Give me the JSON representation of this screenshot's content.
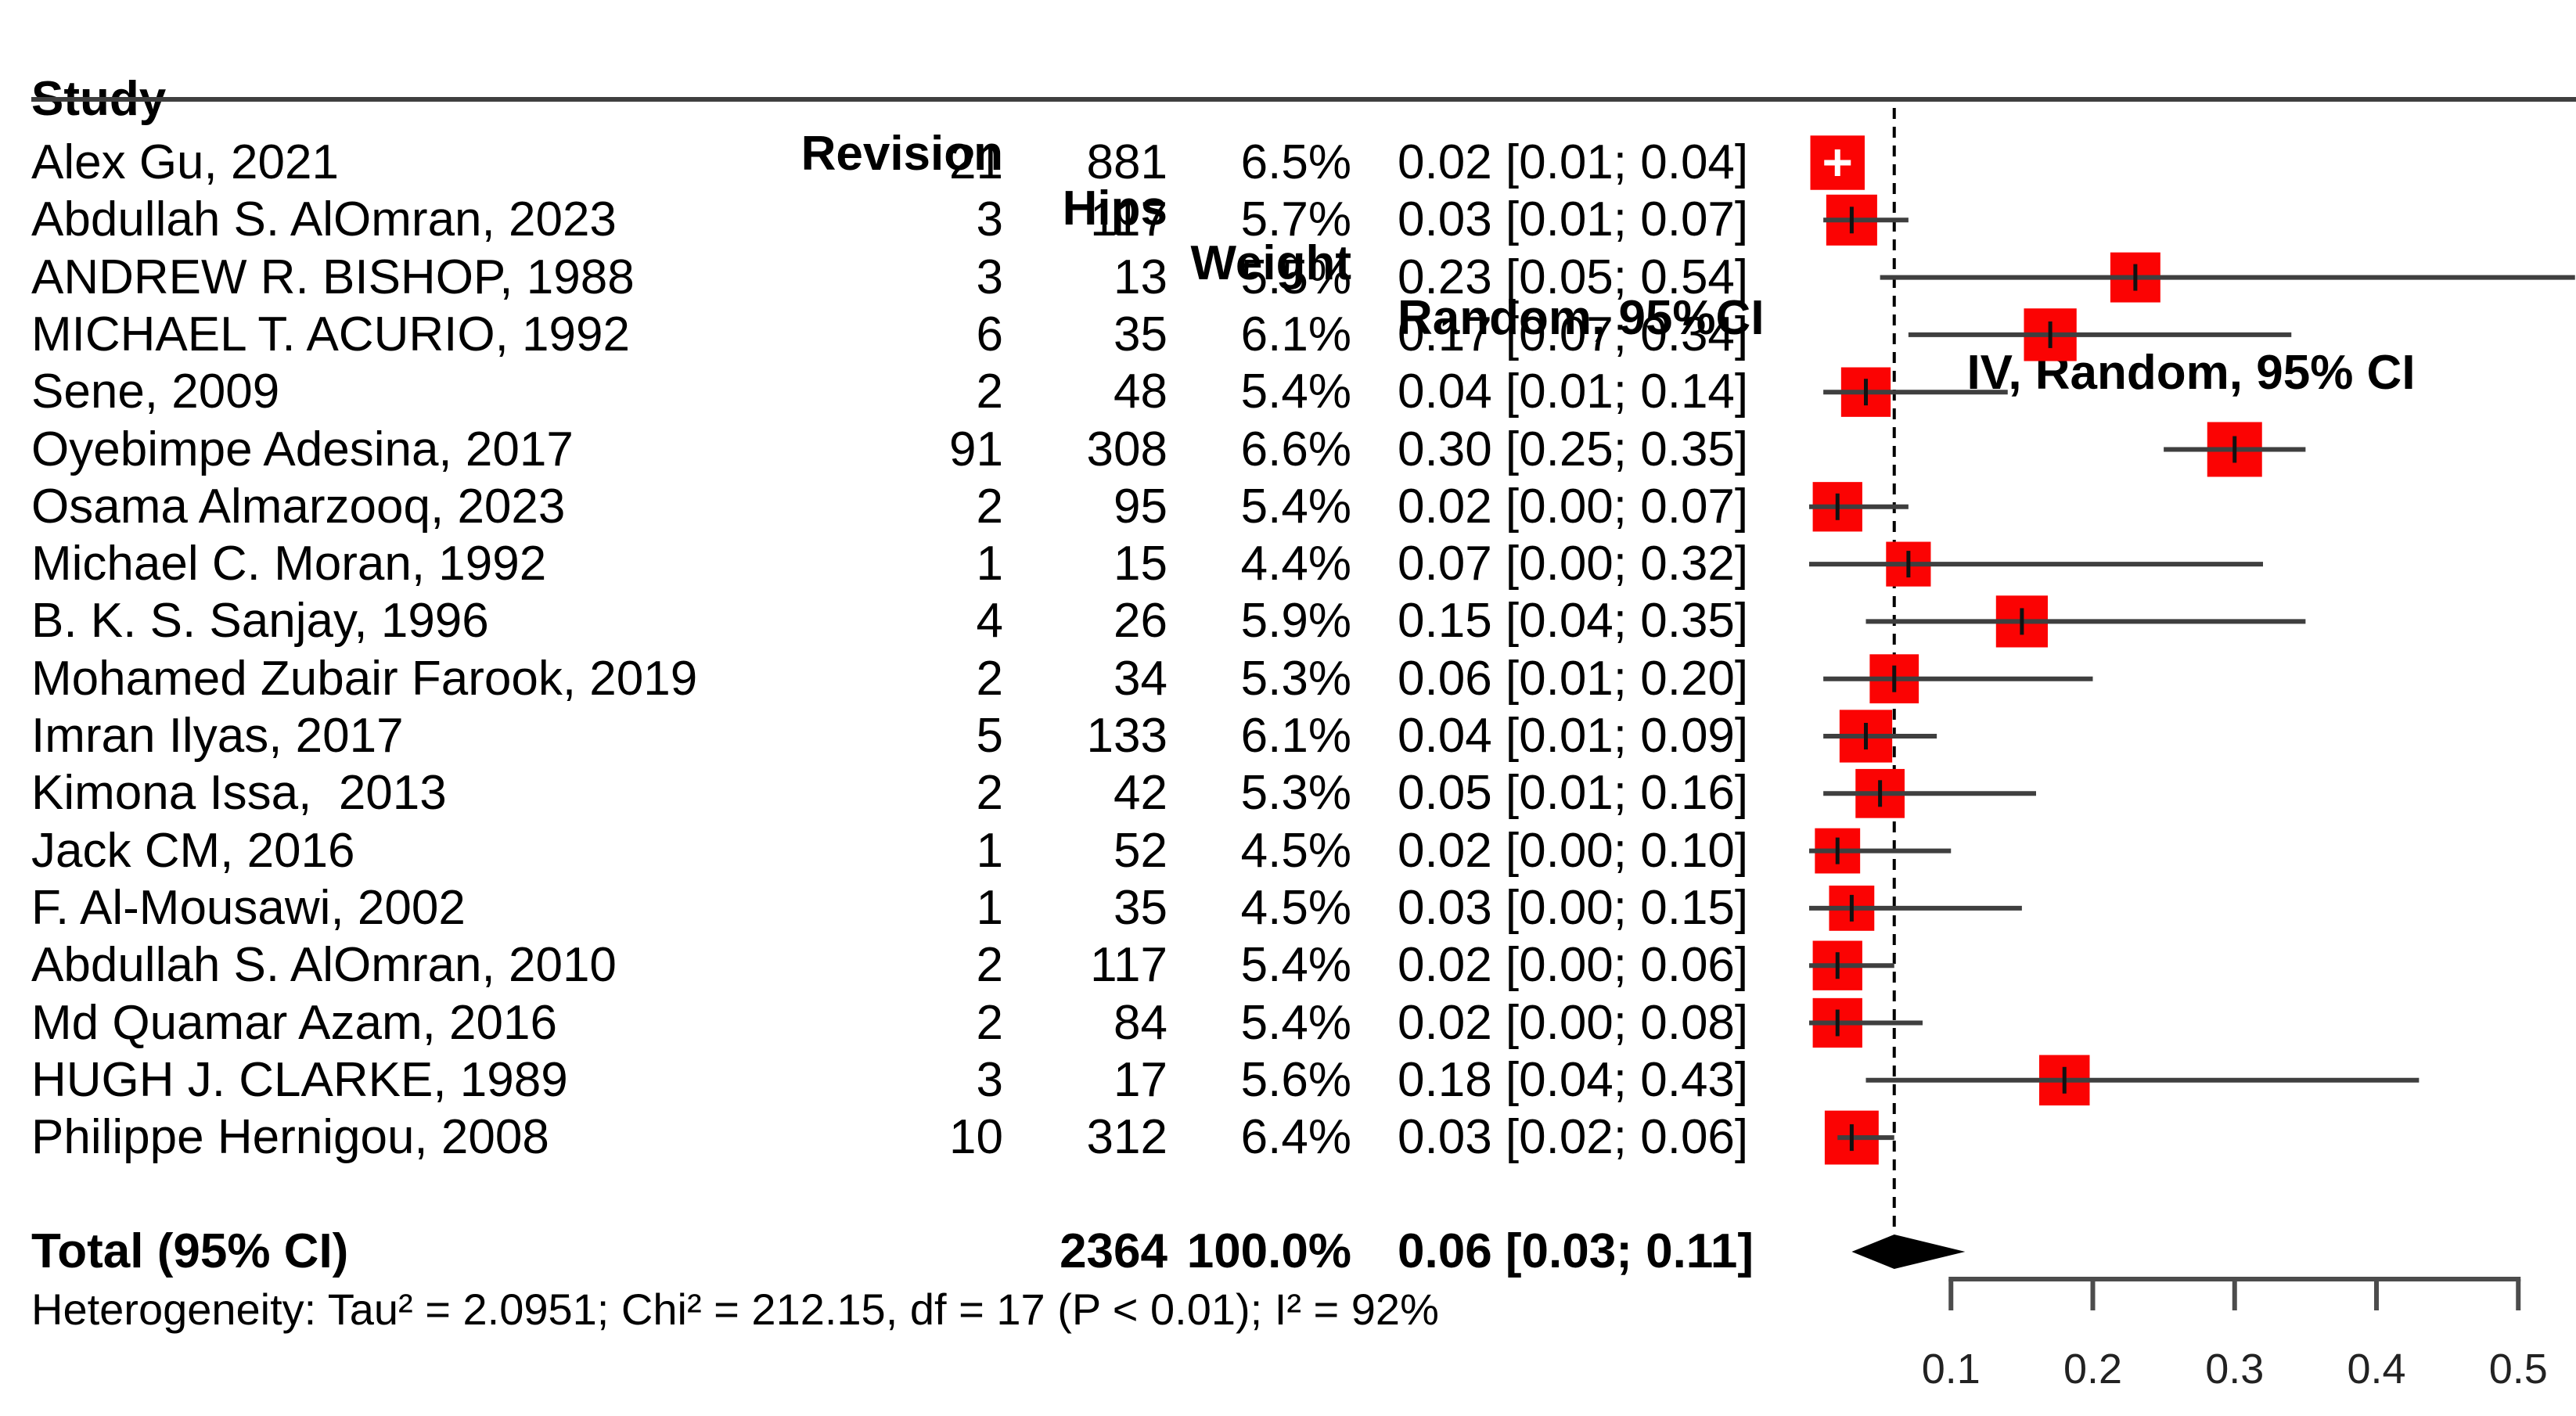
{
  "header": {
    "study": "Study",
    "revision": "Revision",
    "hips": "Hips",
    "weight": "Weight",
    "random_ci": "Random, 95%CI",
    "iv_random_ci": "IV, Random, 95% CI"
  },
  "colors": {
    "marker_red": "#fb0303",
    "ci_line_dark": "#3f3f3f",
    "diamond_black": "#000000",
    "axis_line": "#4c4c4c",
    "axis_label": "#222222",
    "header_rule": "#3f3f3f",
    "reference_line": "#000000",
    "white_plus": "#ffffff"
  },
  "chart_data": {
    "type": "forest",
    "effect_measure": "IV, Random, 95% CI",
    "x_axis": {
      "min": 0,
      "max": 0.545,
      "ticks": [
        0.1,
        0.2,
        0.3,
        0.4,
        0.5
      ],
      "tick_labels": [
        "0.1",
        "0.2",
        "0.3",
        "0.4",
        "0.5"
      ]
    },
    "reference_line": 0.06,
    "legend_position": "none",
    "grid": false,
    "studies": [
      {
        "name": "Alex Gu, 2021",
        "revision": 21,
        "hips": 881,
        "weight_pct": 6.5,
        "weight_text": "6.5%",
        "estimate": 0.02,
        "ci_lower": 0.01,
        "ci_upper": 0.04,
        "ci_text": "0.02 [0.01; 0.04]"
      },
      {
        "name": "Abdullah S. AlOmran, 2023",
        "revision": 3,
        "hips": 117,
        "weight_pct": 5.7,
        "weight_text": "5.7%",
        "estimate": 0.03,
        "ci_lower": 0.01,
        "ci_upper": 0.07,
        "ci_text": "0.03 [0.01; 0.07]"
      },
      {
        "name": "ANDREW R. BISHOP, 1988",
        "revision": 3,
        "hips": 13,
        "weight_pct": 5.5,
        "weight_text": "5.5%",
        "estimate": 0.23,
        "ci_lower": 0.05,
        "ci_upper": 0.54,
        "ci_text": "0.23 [0.05; 0.54]"
      },
      {
        "name": "MICHAEL T. ACURIO, 1992",
        "revision": 6,
        "hips": 35,
        "weight_pct": 6.1,
        "weight_text": "6.1%",
        "estimate": 0.17,
        "ci_lower": 0.07,
        "ci_upper": 0.34,
        "ci_text": "0.17 [0.07; 0.34]"
      },
      {
        "name": "Sene, 2009",
        "revision": 2,
        "hips": 48,
        "weight_pct": 5.4,
        "weight_text": "5.4%",
        "estimate": 0.04,
        "ci_lower": 0.01,
        "ci_upper": 0.14,
        "ci_text": "0.04 [0.01; 0.14]"
      },
      {
        "name": "Oyebimpe Adesina, 2017",
        "revision": 91,
        "hips": 308,
        "weight_pct": 6.6,
        "weight_text": "6.6%",
        "estimate": 0.3,
        "ci_lower": 0.25,
        "ci_upper": 0.35,
        "ci_text": "0.30 [0.25; 0.35]"
      },
      {
        "name": "Osama Almarzooq, 2023",
        "revision": 2,
        "hips": 95,
        "weight_pct": 5.4,
        "weight_text": "5.4%",
        "estimate": 0.02,
        "ci_lower": 0.0,
        "ci_upper": 0.07,
        "ci_text": "0.02 [0.00; 0.07]"
      },
      {
        "name": "Michael C. Moran, 1992",
        "revision": 1,
        "hips": 15,
        "weight_pct": 4.4,
        "weight_text": "4.4%",
        "estimate": 0.07,
        "ci_lower": 0.0,
        "ci_upper": 0.32,
        "ci_text": "0.07 [0.00; 0.32]"
      },
      {
        "name": "B. K. S. Sanjay, 1996",
        "revision": 4,
        "hips": 26,
        "weight_pct": 5.9,
        "weight_text": "5.9%",
        "estimate": 0.15,
        "ci_lower": 0.04,
        "ci_upper": 0.35,
        "ci_text": "0.15 [0.04; 0.35]"
      },
      {
        "name": "Mohamed Zubair Farook, 2019",
        "revision": 2,
        "hips": 34,
        "weight_pct": 5.3,
        "weight_text": "5.3%",
        "estimate": 0.06,
        "ci_lower": 0.01,
        "ci_upper": 0.2,
        "ci_text": "0.06 [0.01; 0.20]"
      },
      {
        "name": "Imran Ilyas, 2017",
        "revision": 5,
        "hips": 133,
        "weight_pct": 6.1,
        "weight_text": "6.1%",
        "estimate": 0.04,
        "ci_lower": 0.01,
        "ci_upper": 0.09,
        "ci_text": "0.04 [0.01; 0.09]"
      },
      {
        "name": "Kimona Issa,  2013",
        "revision": 2,
        "hips": 42,
        "weight_pct": 5.3,
        "weight_text": "5.3%",
        "estimate": 0.05,
        "ci_lower": 0.01,
        "ci_upper": 0.16,
        "ci_text": "0.05 [0.01; 0.16]"
      },
      {
        "name": "Jack CM, 2016",
        "revision": 1,
        "hips": 52,
        "weight_pct": 4.5,
        "weight_text": "4.5%",
        "estimate": 0.02,
        "ci_lower": 0.0,
        "ci_upper": 0.1,
        "ci_text": "0.02 [0.00; 0.10]"
      },
      {
        "name": "F. Al-Mousawi, 2002",
        "revision": 1,
        "hips": 35,
        "weight_pct": 4.5,
        "weight_text": "4.5%",
        "estimate": 0.03,
        "ci_lower": 0.0,
        "ci_upper": 0.15,
        "ci_text": "0.03 [0.00; 0.15]"
      },
      {
        "name": "Abdullah S. AlOmran, 2010",
        "revision": 2,
        "hips": 117,
        "weight_pct": 5.4,
        "weight_text": "5.4%",
        "estimate": 0.02,
        "ci_lower": 0.0,
        "ci_upper": 0.06,
        "ci_text": "0.02 [0.00; 0.06]"
      },
      {
        "name": "Md Quamar Azam, 2016",
        "revision": 2,
        "hips": 84,
        "weight_pct": 5.4,
        "weight_text": "5.4%",
        "estimate": 0.02,
        "ci_lower": 0.0,
        "ci_upper": 0.08,
        "ci_text": "0.02 [0.00; 0.08]"
      },
      {
        "name": "HUGH J. CLARKE, 1989",
        "revision": 3,
        "hips": 17,
        "weight_pct": 5.6,
        "weight_text": "5.6%",
        "estimate": 0.18,
        "ci_lower": 0.04,
        "ci_upper": 0.43,
        "ci_text": "0.18 [0.04; 0.43]"
      },
      {
        "name": "Philippe Hernigou, 2008",
        "revision": 10,
        "hips": 312,
        "weight_pct": 6.4,
        "weight_text": "6.4%",
        "estimate": 0.03,
        "ci_lower": 0.02,
        "ci_upper": 0.06,
        "ci_text": "0.03 [0.02; 0.06]"
      }
    ],
    "total": {
      "label": "Total (95% CI)",
      "hips": 2364,
      "weight_pct": 100.0,
      "weight_text": "100.0%",
      "estimate": 0.06,
      "ci_lower": 0.03,
      "ci_upper": 0.11,
      "ci_text": "0.06 [0.03; 0.11]"
    },
    "heterogeneity_text": "Heterogeneity: Tau² = 2.0951; Chi² = 212.15, df = 17 (P < 0.01); I² = 92%"
  }
}
